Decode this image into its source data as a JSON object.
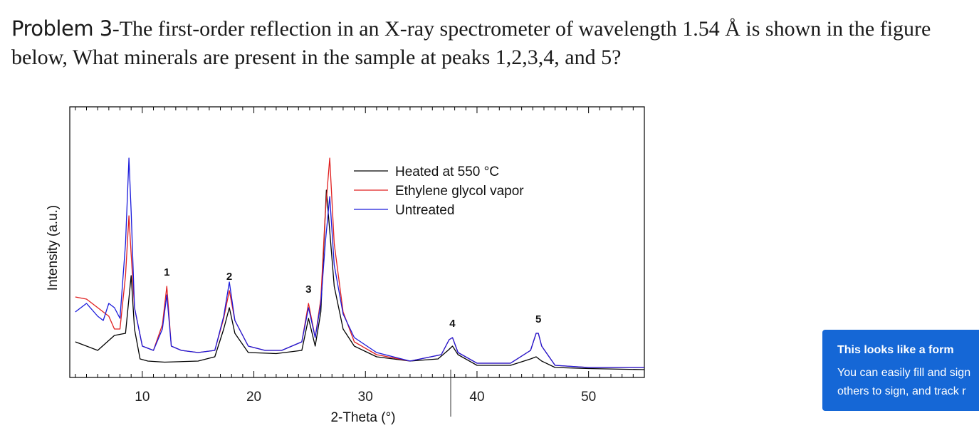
{
  "problem": {
    "label": "Problem 3",
    "text": "-The first-order reflection in an X-ray spectrometer of wavelength 1.54 Å   is shown in the figure below, What minerals are present in the sample at peaks 1,2,3,4, and 5?"
  },
  "popup": {
    "title": "This looks like a form",
    "body": "You can easily fill and sign others to sign, and track r"
  },
  "chart_data": {
    "type": "line",
    "xlabel": "2-Theta (°)",
    "ylabel": "Intensity (a.u.)",
    "xlim": [
      3.5,
      55
    ],
    "ylim": [
      0,
      100
    ],
    "x_ticks": [
      10,
      20,
      30,
      40,
      50
    ],
    "grid": false,
    "legend_position": "top-center",
    "peak_labels": [
      {
        "label": "1",
        "x": 12.2
      },
      {
        "label": "2",
        "x": 17.8
      },
      {
        "label": "3",
        "x": 24.9
      },
      {
        "label": "4",
        "x": 37.8
      },
      {
        "label": "5",
        "x": 45.5
      }
    ],
    "series": [
      {
        "name": "Heated at 550 °C",
        "color": "#000000",
        "x": [
          4,
          6,
          7.5,
          8.5,
          9,
          9.3,
          9.8,
          10.5,
          12,
          15,
          16.5,
          17.3,
          17.8,
          18.3,
          19.5,
          22,
          24.3,
          24.9,
          25.5,
          26,
          26.5,
          26.8,
          27.2,
          28,
          29,
          31,
          34,
          36.5,
          37.4,
          37.8,
          38.3,
          40,
          43,
          44.8,
          45.3,
          45.8,
          47,
          50,
          55
        ],
        "y": [
          14,
          10,
          17,
          18,
          45,
          20,
          6,
          5,
          4.5,
          5,
          7,
          20,
          30,
          18,
          9,
          8.5,
          10,
          25,
          12,
          28,
          85,
          66,
          40,
          20,
          12,
          7,
          5,
          6,
          10,
          12,
          8,
          3,
          3,
          6,
          7,
          5,
          2,
          1.5,
          1
        ]
      },
      {
        "name": "Ethylene glycol vapor",
        "color": "#e02020",
        "x": [
          4,
          5,
          6,
          7,
          7.5,
          8,
          8.5,
          8.8,
          9,
          9.3,
          10,
          11,
          11.8,
          12.2,
          12.6,
          13.5,
          15,
          16.5,
          17.3,
          17.8,
          18.3,
          19.5,
          21,
          22.5,
          24.3,
          24.9,
          25.5,
          26,
          26.4,
          26.8,
          27.2,
          28,
          29,
          31,
          34,
          36.8,
          37.5,
          37.8,
          38.3,
          40,
          43,
          44.8,
          45.3,
          45.5,
          45.8,
          47,
          50,
          55
        ],
        "y": [
          35,
          34,
          30,
          26,
          20,
          20,
          45,
          73,
          55,
          30,
          12,
          10,
          22,
          40,
          12,
          10,
          9,
          10,
          25,
          38,
          24,
          12,
          10,
          10,
          14,
          32,
          16,
          34,
          74,
          100,
          60,
          28,
          14,
          8,
          5,
          8,
          15,
          16,
          9,
          4,
          4,
          10,
          18,
          18,
          12,
          3,
          2,
          2
        ]
      },
      {
        "name": "Untreated",
        "color": "#1a1adb",
        "x": [
          4,
          5,
          6,
          6.5,
          7,
          7.5,
          8,
          8.5,
          8.8,
          9,
          9.3,
          10,
          11,
          11.8,
          12.2,
          12.6,
          13.5,
          15,
          16.5,
          17.3,
          17.8,
          18.3,
          19.5,
          21,
          22.5,
          24.3,
          24.9,
          25.5,
          26,
          26.4,
          26.8,
          27.2,
          28,
          29,
          31,
          34,
          36.8,
          37.5,
          37.8,
          38.3,
          40,
          43,
          44.8,
          45.3,
          45.5,
          45.8,
          47,
          50,
          55
        ],
        "y": [
          28,
          32,
          26,
          24,
          32,
          30,
          25,
          60,
          100,
          75,
          30,
          12,
          10,
          20,
          36,
          12,
          10,
          9,
          10,
          26,
          42,
          24,
          12,
          10,
          10,
          14,
          30,
          16,
          32,
          60,
          82,
          50,
          27,
          16,
          9,
          5,
          8,
          15,
          16,
          9,
          4,
          4,
          10,
          18,
          18,
          12,
          3,
          2,
          2
        ]
      }
    ]
  }
}
